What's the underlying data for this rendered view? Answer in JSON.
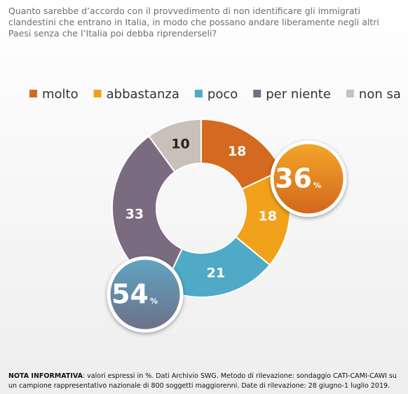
{
  "question": "Quanto sarebbe d’accordo con il provvedimento di non identificare gli immigrati clandestini che entrano in Italia, in modo che possano andare liberamente negli altri Paesi senza che l’Italia poi debba riprenderseli?",
  "chart_data": {
    "type": "donut",
    "categories": [
      "molto",
      "abbastanza",
      "poco",
      "per niente",
      "non sa"
    ],
    "values": [
      18,
      18,
      21,
      33,
      10
    ],
    "colors": [
      "#d46a1f",
      "#f2a11b",
      "#4eaac7",
      "#7b6b81",
      "#c9c0b9"
    ],
    "label_colors": [
      "#ffffff",
      "#ffffff",
      "#ffffff",
      "#ffffff",
      "#222222"
    ],
    "annotations": [
      {
        "value": 36,
        "unit": "%",
        "colors": [
          "#f4a62a",
          "#d2661c"
        ]
      },
      {
        "value": 54,
        "unit": "%",
        "colors": [
          "#5fa5c2",
          "#6e6f88"
        ]
      }
    ]
  },
  "footer": {
    "label": "NOTA INFORMATIVA",
    "text": ": valori espressi in %. Dati Archivio SWG. Metodo di rilevazione: sondaggio CATI-CAMI-CAWI su un campione rappresentativo nazionale di 800 soggetti maggiorenni. Date di rilevazione: 28 giugno-1 luglio 2019."
  }
}
